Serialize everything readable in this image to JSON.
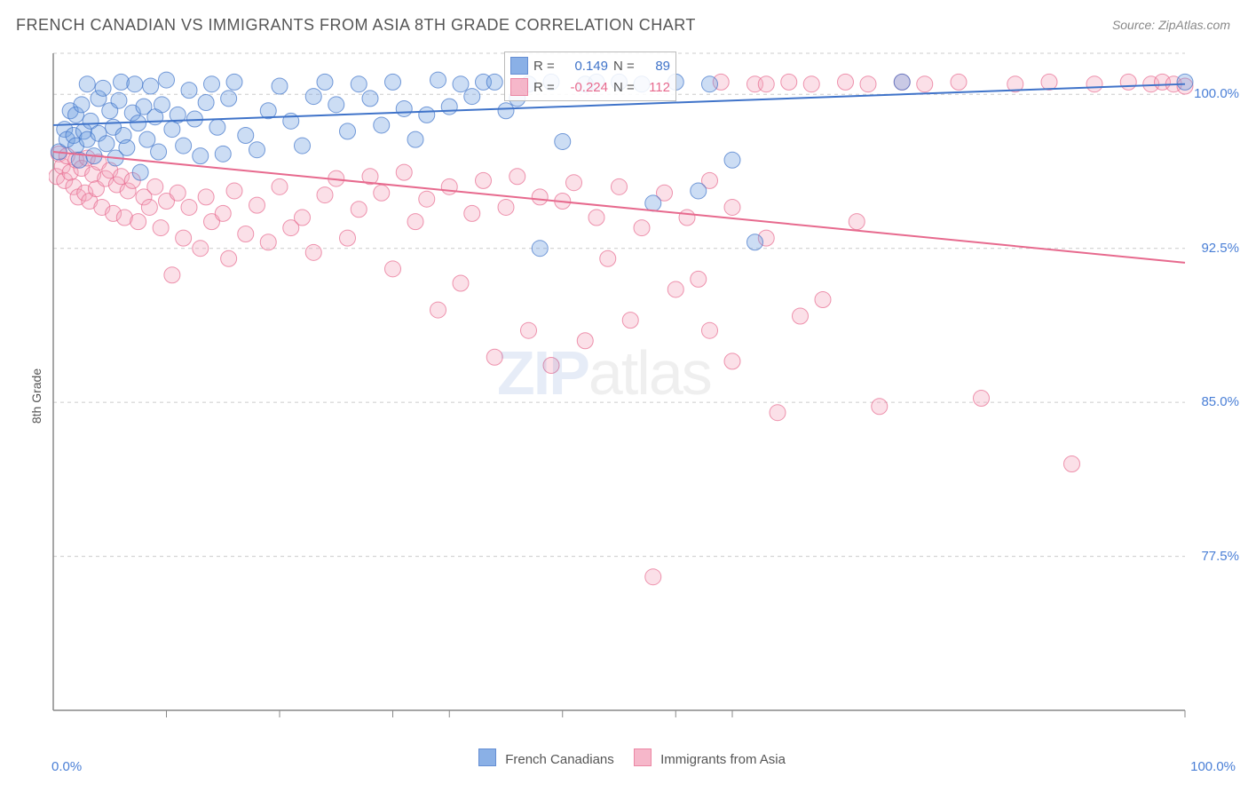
{
  "title": "FRENCH CANADIAN VS IMMIGRANTS FROM ASIA 8TH GRADE CORRELATION CHART",
  "source": "Source: ZipAtlas.com",
  "ylabel": "8th Grade",
  "watermark": {
    "zip": "ZIP",
    "atlas": "atlas"
  },
  "series": {
    "blue": {
      "name": "French Canadians",
      "color_fill": "#6e9de0",
      "color_stroke": "#3f73c9",
      "fill_opacity": 0.35,
      "R": "0.149",
      "N": "89",
      "trend": {
        "y_at_x0": 98.5,
        "y_at_x100": 100.5
      }
    },
    "pink": {
      "name": "Immigrants from Asia",
      "color_fill": "#f4a6bd",
      "color_stroke": "#e76a8e",
      "fill_opacity": 0.35,
      "R": "-0.224",
      "N": "112",
      "trend": {
        "y_at_x0": 97.2,
        "y_at_x100": 91.8
      }
    }
  },
  "axes": {
    "xlim": [
      0,
      100
    ],
    "ylim": [
      70,
      102
    ],
    "xticks": [
      {
        "pos": 0,
        "label": "0.0%"
      },
      {
        "pos": 100,
        "label": "100.0%"
      }
    ],
    "yticks": [
      {
        "pos": 100,
        "label": "100.0%"
      },
      {
        "pos": 92.5,
        "label": "92.5%"
      },
      {
        "pos": 85,
        "label": "85.0%"
      },
      {
        "pos": 77.5,
        "label": "77.5%"
      }
    ],
    "xgrid_minor": [
      10,
      20,
      30,
      35,
      45,
      55,
      60,
      100
    ],
    "grid_color": "#cccccc",
    "axis_color": "#888888",
    "background": "#ffffff"
  },
  "stat_labels": {
    "R": "R  =",
    "N": "N  ="
  },
  "marker_radius": 9,
  "line_width": 2,
  "points": {
    "blue": [
      [
        0.5,
        97.2
      ],
      [
        1,
        98.3
      ],
      [
        1.2,
        97.8
      ],
      [
        1.5,
        99.2
      ],
      [
        1.8,
        98.0
      ],
      [
        2,
        97.5
      ],
      [
        2,
        99.0
      ],
      [
        2.3,
        96.8
      ],
      [
        2.5,
        99.5
      ],
      [
        2.7,
        98.2
      ],
      [
        3,
        100.5
      ],
      [
        3,
        97.8
      ],
      [
        3.3,
        98.7
      ],
      [
        3.6,
        97.0
      ],
      [
        4,
        99.8
      ],
      [
        4,
        98.1
      ],
      [
        4.4,
        100.3
      ],
      [
        4.7,
        97.6
      ],
      [
        5,
        99.2
      ],
      [
        5.3,
        98.4
      ],
      [
        5.5,
        96.9
      ],
      [
        5.8,
        99.7
      ],
      [
        6,
        100.6
      ],
      [
        6.2,
        98.0
      ],
      [
        6.5,
        97.4
      ],
      [
        7,
        99.1
      ],
      [
        7.2,
        100.5
      ],
      [
        7.5,
        98.6
      ],
      [
        7.7,
        96.2
      ],
      [
        8,
        99.4
      ],
      [
        8.3,
        97.8
      ],
      [
        8.6,
        100.4
      ],
      [
        9,
        98.9
      ],
      [
        9.3,
        97.2
      ],
      [
        9.6,
        99.5
      ],
      [
        10,
        100.7
      ],
      [
        10.5,
        98.3
      ],
      [
        11,
        99.0
      ],
      [
        11.5,
        97.5
      ],
      [
        12,
        100.2
      ],
      [
        12.5,
        98.8
      ],
      [
        13,
        97.0
      ],
      [
        13.5,
        99.6
      ],
      [
        14,
        100.5
      ],
      [
        14.5,
        98.4
      ],
      [
        15,
        97.1
      ],
      [
        15.5,
        99.8
      ],
      [
        16,
        100.6
      ],
      [
        17,
        98.0
      ],
      [
        18,
        97.3
      ],
      [
        19,
        99.2
      ],
      [
        20,
        100.4
      ],
      [
        21,
        98.7
      ],
      [
        22,
        97.5
      ],
      [
        23,
        99.9
      ],
      [
        24,
        100.6
      ],
      [
        25,
        99.5
      ],
      [
        26,
        98.2
      ],
      [
        27,
        100.5
      ],
      [
        28,
        99.8
      ],
      [
        29,
        98.5
      ],
      [
        30,
        100.6
      ],
      [
        31,
        99.3
      ],
      [
        32,
        97.8
      ],
      [
        33,
        99.0
      ],
      [
        34,
        100.7
      ],
      [
        35,
        99.4
      ],
      [
        36,
        100.5
      ],
      [
        37,
        99.9
      ],
      [
        38,
        100.6
      ],
      [
        39,
        100.6
      ],
      [
        40,
        99.2
      ],
      [
        41,
        99.8
      ],
      [
        42,
        100.5
      ],
      [
        43,
        92.5
      ],
      [
        44,
        100.6
      ],
      [
        45,
        97.7
      ],
      [
        47,
        100.5
      ],
      [
        48,
        100.6
      ],
      [
        50,
        100.6
      ],
      [
        52,
        100.5
      ],
      [
        53,
        94.7
      ],
      [
        55,
        100.6
      ],
      [
        57,
        95.3
      ],
      [
        58,
        100.5
      ],
      [
        60,
        96.8
      ],
      [
        62,
        92.8
      ],
      [
        75,
        100.6
      ],
      [
        100,
        100.6
      ]
    ],
    "pink": [
      [
        0.3,
        96.0
      ],
      [
        0.5,
        97.1
      ],
      [
        0.8,
        96.5
      ],
      [
        1,
        95.8
      ],
      [
        1.2,
        97.0
      ],
      [
        1.5,
        96.2
      ],
      [
        1.8,
        95.5
      ],
      [
        2,
        96.8
      ],
      [
        2.2,
        95.0
      ],
      [
        2.5,
        96.4
      ],
      [
        2.8,
        95.2
      ],
      [
        3,
        96.9
      ],
      [
        3.2,
        94.8
      ],
      [
        3.5,
        96.1
      ],
      [
        3.8,
        95.4
      ],
      [
        4,
        96.7
      ],
      [
        4.3,
        94.5
      ],
      [
        4.6,
        95.9
      ],
      [
        5,
        96.3
      ],
      [
        5.3,
        94.2
      ],
      [
        5.6,
        95.6
      ],
      [
        6,
        96.0
      ],
      [
        6.3,
        94.0
      ],
      [
        6.6,
        95.3
      ],
      [
        7,
        95.8
      ],
      [
        7.5,
        93.8
      ],
      [
        8,
        95.0
      ],
      [
        8.5,
        94.5
      ],
      [
        9,
        95.5
      ],
      [
        9.5,
        93.5
      ],
      [
        10,
        94.8
      ],
      [
        10.5,
        91.2
      ],
      [
        11,
        95.2
      ],
      [
        11.5,
        93.0
      ],
      [
        12,
        94.5
      ],
      [
        13,
        92.5
      ],
      [
        13.5,
        95.0
      ],
      [
        14,
        93.8
      ],
      [
        15,
        94.2
      ],
      [
        15.5,
        92.0
      ],
      [
        16,
        95.3
      ],
      [
        17,
        93.2
      ],
      [
        18,
        94.6
      ],
      [
        19,
        92.8
      ],
      [
        20,
        95.5
      ],
      [
        21,
        93.5
      ],
      [
        22,
        94.0
      ],
      [
        23,
        92.3
      ],
      [
        24,
        95.1
      ],
      [
        25,
        95.9
      ],
      [
        26,
        93.0
      ],
      [
        27,
        94.4
      ],
      [
        28,
        96.0
      ],
      [
        29,
        95.2
      ],
      [
        30,
        91.5
      ],
      [
        31,
        96.2
      ],
      [
        32,
        93.8
      ],
      [
        33,
        94.9
      ],
      [
        34,
        89.5
      ],
      [
        35,
        95.5
      ],
      [
        36,
        90.8
      ],
      [
        37,
        94.2
      ],
      [
        38,
        95.8
      ],
      [
        39,
        87.2
      ],
      [
        40,
        94.5
      ],
      [
        41,
        96.0
      ],
      [
        42,
        88.5
      ],
      [
        43,
        95.0
      ],
      [
        44,
        86.8
      ],
      [
        45,
        94.8
      ],
      [
        46,
        95.7
      ],
      [
        47,
        88.0
      ],
      [
        48,
        94.0
      ],
      [
        49,
        92.0
      ],
      [
        50,
        95.5
      ],
      [
        51,
        89.0
      ],
      [
        52,
        93.5
      ],
      [
        53,
        76.5
      ],
      [
        54,
        95.2
      ],
      [
        55,
        90.5
      ],
      [
        56,
        94.0
      ],
      [
        57,
        91.0
      ],
      [
        58,
        95.8
      ],
      [
        59,
        100.6
      ],
      [
        60,
        94.5
      ],
      [
        62,
        100.5
      ],
      [
        63,
        93.0
      ],
      [
        64,
        84.5
      ],
      [
        65,
        100.6
      ],
      [
        66,
        89.2
      ],
      [
        67,
        100.5
      ],
      [
        68,
        90.0
      ],
      [
        70,
        100.6
      ],
      [
        71,
        93.8
      ],
      [
        72,
        100.5
      ],
      [
        73,
        84.8
      ],
      [
        75,
        100.6
      ],
      [
        77,
        100.5
      ],
      [
        80,
        100.6
      ],
      [
        82,
        85.2
      ],
      [
        85,
        100.5
      ],
      [
        88,
        100.6
      ],
      [
        90,
        82.0
      ],
      [
        92,
        100.5
      ],
      [
        95,
        100.6
      ],
      [
        97,
        100.5
      ],
      [
        98,
        100.6
      ],
      [
        99,
        100.5
      ],
      [
        100,
        100.4
      ],
      [
        63,
        100.5
      ],
      [
        58,
        88.5
      ],
      [
        60,
        87.0
      ]
    ]
  }
}
